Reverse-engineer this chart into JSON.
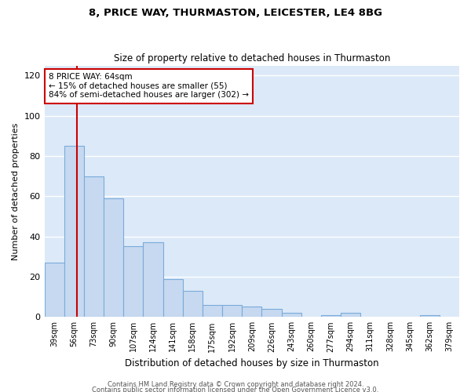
{
  "title1": "8, PRICE WAY, THURMASTON, LEICESTER, LE4 8BG",
  "title2": "Size of property relative to detached houses in Thurmaston",
  "xlabel": "Distribution of detached houses by size in Thurmaston",
  "ylabel": "Number of detached properties",
  "categories": [
    "39sqm",
    "56sqm",
    "73sqm",
    "90sqm",
    "107sqm",
    "124sqm",
    "141sqm",
    "158sqm",
    "175sqm",
    "192sqm",
    "209sqm",
    "226sqm",
    "243sqm",
    "260sqm",
    "277sqm",
    "294sqm",
    "311sqm",
    "328sqm",
    "345sqm",
    "362sqm",
    "379sqm"
  ],
  "values": [
    27,
    85,
    70,
    59,
    35,
    37,
    19,
    13,
    6,
    6,
    5,
    4,
    2,
    0,
    1,
    2,
    0,
    0,
    0,
    1,
    0
  ],
  "bar_color": "#c6d9f0",
  "bar_edge_color": "#7aabdb",
  "bar_width": 1.0,
  "ylim": [
    0,
    125
  ],
  "yticks": [
    0,
    20,
    40,
    60,
    80,
    100,
    120
  ],
  "vline_color": "#cc0000",
  "vline_x": 1.15,
  "annotation_text": "8 PRICE WAY: 64sqm\n← 15% of detached houses are smaller (55)\n84% of semi-detached houses are larger (302) →",
  "annotation_box_color": "#ffffff",
  "annotation_box_edge": "#cc0000",
  "footer1": "Contains HM Land Registry data © Crown copyright and database right 2024.",
  "footer2": "Contains public sector information licensed under the Open Government Licence v3.0.",
  "fig_bg": "#ffffff",
  "plot_bg": "#dce9f8",
  "grid_color": "#ffffff",
  "title1_fontsize": 9.5,
  "title2_fontsize": 8.5,
  "ylabel_fontsize": 8,
  "xlabel_fontsize": 8.5,
  "tick_fontsize": 8,
  "xtick_fontsize": 7,
  "footer_fontsize": 6,
  "annot_fontsize": 7.5
}
